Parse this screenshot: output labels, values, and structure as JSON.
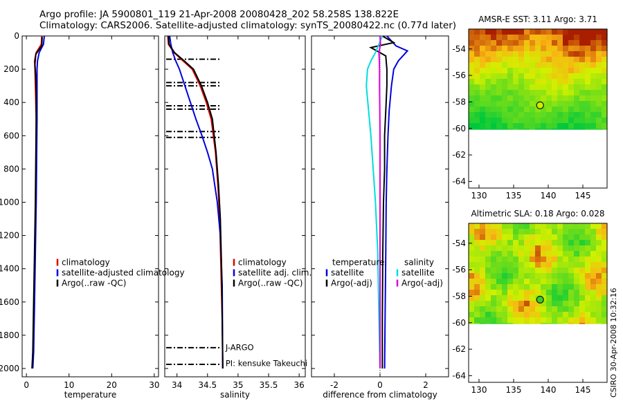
{
  "header": {
    "line1": "Argo profile: JA 5900801_119 21-Apr-2008 20080428_202 58.258S 138.822E",
    "line2": "Climatology: CARS2006. Satellite-adjusted climatology: synTS_20080422.nc (0.77d later)"
  },
  "credit": "CSIRO 30-Apr-2008 10:32:16",
  "colors": {
    "climatology": "#dd0000",
    "satellite": "#0000dd",
    "argo": "#000000",
    "sat_salinity": "#00dddd",
    "argo_salinity": "#dd00dd",
    "no_data": "#ffffff",
    "float_marker": "#ccee00"
  },
  "chart_data": [
    {
      "type": "line",
      "xlabel": "temperature",
      "ylabel": "",
      "xlim": [
        -1,
        31
      ],
      "ylim": [
        2050,
        0
      ],
      "y_inverted": true,
      "xticks": [
        0,
        10,
        20,
        30
      ],
      "yticks": [
        0,
        200,
        400,
        600,
        800,
        1000,
        1200,
        1400,
        1600,
        1800,
        2000
      ],
      "legend": {
        "placement": "bottom-right",
        "entries": [
          "climatology",
          "satellite-adjusted climatology",
          "Argo(..raw -QC)"
        ]
      },
      "series": [
        {
          "name": "climatology",
          "color": "#dd0000",
          "x": [
            3.6,
            3.5,
            2.3,
            1.9,
            2.0,
            2.1,
            2.3,
            2.3,
            2.2,
            2.0,
            1.8,
            1.6,
            1.4
          ],
          "y": [
            0,
            50,
            100,
            150,
            200,
            300,
            500,
            750,
            1000,
            1300,
            1600,
            1900,
            2000
          ]
        },
        {
          "name": "satellite-adjusted climatology",
          "color": "#0000dd",
          "x": [
            4.2,
            4.0,
            3.0,
            2.6,
            2.5,
            2.5,
            2.5,
            2.4,
            2.3,
            2.1,
            1.9,
            1.7,
            1.5
          ],
          "y": [
            0,
            50,
            100,
            150,
            200,
            300,
            500,
            750,
            1000,
            1300,
            1600,
            1900,
            2000
          ]
        },
        {
          "name": "Argo(..raw -QC)",
          "color": "#000000",
          "x": [
            3.7,
            3.6,
            2.2,
            2.0,
            2.2,
            2.3,
            2.3,
            2.2,
            2.1,
            1.9,
            1.7,
            1.5,
            1.3
          ],
          "y": [
            5,
            60,
            110,
            170,
            250,
            350,
            500,
            750,
            1000,
            1300,
            1600,
            1900,
            2000
          ]
        }
      ]
    },
    {
      "type": "line",
      "xlabel": "salinity",
      "ylabel": "",
      "xlim": [
        33.8,
        36.1
      ],
      "ylim": [
        2050,
        0
      ],
      "y_inverted": true,
      "xticks": [
        34,
        34.5,
        35,
        35.5,
        36
      ],
      "legend": {
        "placement": "bottom-right",
        "entries": [
          "climatology",
          "satellite adj. clim.",
          "Argo(..raw -QC)"
        ]
      },
      "annotations": [
        "J-ARGO",
        "PI: kensuke Takeuchi"
      ],
      "qc_flag_depths": [
        140,
        280,
        300,
        420,
        440,
        575,
        610,
        1875,
        1975
      ],
      "series": [
        {
          "name": "climatology",
          "color": "#dd0000",
          "x": [
            33.85,
            33.86,
            33.95,
            34.1,
            34.25,
            34.38,
            34.48,
            34.56,
            34.63,
            34.67,
            34.7,
            34.72,
            34.74,
            34.75
          ],
          "y": [
            0,
            50,
            100,
            150,
            200,
            300,
            400,
            500,
            700,
            900,
            1100,
            1400,
            1700,
            2000
          ]
        },
        {
          "name": "satellite adj. clim.",
          "color": "#0000dd",
          "x": [
            33.88,
            33.9,
            33.93,
            33.98,
            34.04,
            34.13,
            34.22,
            34.31,
            34.41,
            34.5,
            34.58,
            34.66,
            34.71,
            34.74,
            34.75
          ],
          "y": [
            0,
            50,
            100,
            150,
            200,
            300,
            400,
            500,
            600,
            700,
            800,
            1000,
            1200,
            1500,
            2000
          ]
        },
        {
          "name": "Argo(..raw -QC)",
          "color": "#000000",
          "x": [
            33.86,
            33.87,
            33.96,
            34.12,
            34.27,
            34.4,
            34.5,
            34.58,
            34.64,
            34.68,
            34.71,
            34.73,
            34.74,
            34.75
          ],
          "y": [
            0,
            50,
            100,
            150,
            200,
            300,
            400,
            500,
            700,
            900,
            1100,
            1400,
            1700,
            2000
          ]
        }
      ]
    },
    {
      "type": "line",
      "xlabel": "difference from climatology",
      "ylabel": "",
      "xlim": [
        -3,
        3
      ],
      "ylim": [
        2050,
        0
      ],
      "y_inverted": true,
      "xticks": [
        -2,
        0,
        2
      ],
      "legend": {
        "placement": "bottom",
        "headers": [
          "temperature",
          "salinity"
        ],
        "entries": [
          "satellite",
          "Argo(-adj)",
          "satellite",
          "Argo(-adj)"
        ]
      },
      "series": [
        {
          "name": "satellite",
          "group": "temperature",
          "color": "#0000dd",
          "x": [
            0.3,
            0.7,
            1.2,
            0.8,
            0.6,
            0.5,
            0.4,
            0.35,
            0.3,
            0.27,
            0.25,
            0.22,
            0.2
          ],
          "y": [
            0,
            60,
            90,
            150,
            200,
            300,
            450,
            600,
            800,
            1000,
            1300,
            1700,
            2000
          ]
        },
        {
          "name": "Argo(-adj)",
          "group": "temperature",
          "color": "#000000",
          "x": [
            0.1,
            0.6,
            -0.4,
            0.25,
            0.3,
            0.3,
            0.25,
            0.2,
            0.2,
            0.15,
            0.12,
            0.1,
            0.1
          ],
          "y": [
            0,
            40,
            70,
            120,
            200,
            300,
            450,
            600,
            800,
            1000,
            1300,
            1700,
            2000
          ]
        },
        {
          "name": "satellite",
          "group": "salinity",
          "color": "#00dddd",
          "x": [
            0.1,
            -0.05,
            -0.2,
            -0.4,
            -0.55,
            -0.6,
            -0.5,
            -0.4,
            -0.3,
            -0.2,
            -0.1,
            -0.05,
            0.0
          ],
          "y": [
            0,
            50,
            100,
            150,
            200,
            300,
            450,
            600,
            800,
            1000,
            1300,
            1700,
            2000
          ]
        },
        {
          "name": "Argo(-adj)",
          "group": "salinity",
          "color": "#dd00dd",
          "x": [
            0.0,
            0.02,
            -0.05,
            -0.03,
            -0.02,
            -0.02,
            -0.01,
            0.0,
            0.0,
            0.0,
            0.0,
            0.0,
            0.0
          ],
          "y": [
            0,
            50,
            100,
            150,
            200,
            300,
            450,
            600,
            800,
            1000,
            1300,
            1700,
            2000
          ]
        }
      ]
    },
    {
      "type": "heatmap",
      "title": "AMSR-E SST: 3.11  Argo: 3.71",
      "xlim": [
        128.5,
        148.5
      ],
      "ylim": [
        -64.5,
        -52.5
      ],
      "xticks": [
        130,
        135,
        140,
        145
      ],
      "yticks": [
        -54,
        -56,
        -58,
        -60,
        -62,
        -64
      ],
      "no_data_below_lat": -60.1,
      "float_position": {
        "lon": 138.822,
        "lat": -58.258
      }
    },
    {
      "type": "heatmap",
      "title": "Altimetric SLA: 0.18  Argo: 0.028",
      "xlim": [
        128.5,
        148.5
      ],
      "ylim": [
        -64.5,
        -52.5
      ],
      "xticks": [
        130,
        135,
        140,
        145
      ],
      "yticks": [
        -54,
        -56,
        -58,
        -60,
        -62,
        -64
      ],
      "no_data_below_lat": -60.1,
      "float_position": {
        "lon": 138.822,
        "lat": -58.258
      }
    }
  ]
}
